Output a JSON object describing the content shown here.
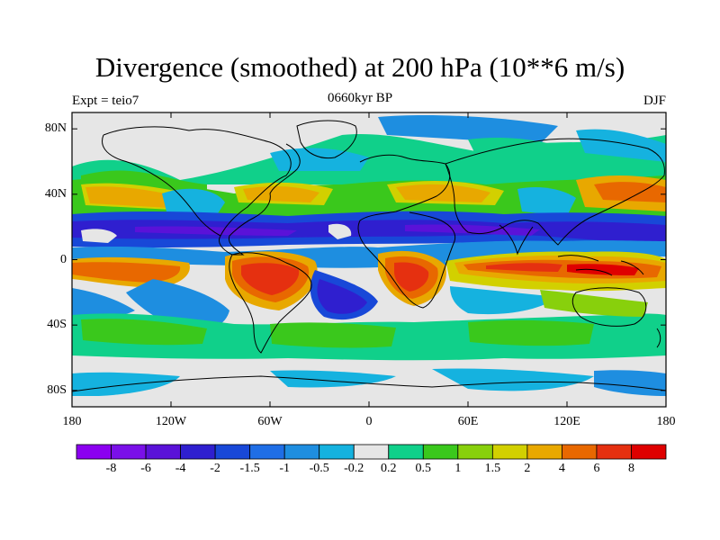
{
  "title": "Divergence (smoothed) at 200 hPa (10**6 m/s)",
  "subtitle_left": "Expt = teio7",
  "subtitle_center": "0660kyr BP",
  "subtitle_right": "DJF",
  "map": {
    "lon_range": [
      -180,
      180
    ],
    "lat_range": [
      -90,
      90
    ],
    "lat_ticks": [
      {
        "value": 80,
        "label": "80N"
      },
      {
        "value": 40,
        "label": "40N"
      },
      {
        "value": 0,
        "label": "0"
      },
      {
        "value": -40,
        "label": "40S"
      },
      {
        "value": -80,
        "label": "80S"
      }
    ],
    "lon_ticks": [
      {
        "value": -180,
        "label": "180"
      },
      {
        "value": -120,
        "label": "120W"
      },
      {
        "value": -60,
        "label": "60W"
      },
      {
        "value": 0,
        "label": "0"
      },
      {
        "value": 60,
        "label": "60E"
      },
      {
        "value": 120,
        "label": "120E"
      },
      {
        "value": 180,
        "label": "180"
      }
    ]
  },
  "colorbar": {
    "colors": [
      "#8b00f0",
      "#7a10e8",
      "#5a12d8",
      "#2f1fcf",
      "#1848d8",
      "#1f6ee6",
      "#1e8ee0",
      "#15b2df",
      "#e6e6e6",
      "#10d08a",
      "#3ac81c",
      "#88d00c",
      "#d2d000",
      "#e8a800",
      "#e86800",
      "#e53010",
      "#df0000"
    ],
    "labels": [
      "-8",
      "-6",
      "-4",
      "-2",
      "-1.5",
      "-1",
      "-0.5",
      "-0.2",
      "0.2",
      "0.5",
      "1",
      "1.5",
      "2",
      "4",
      "6",
      "8"
    ]
  }
}
